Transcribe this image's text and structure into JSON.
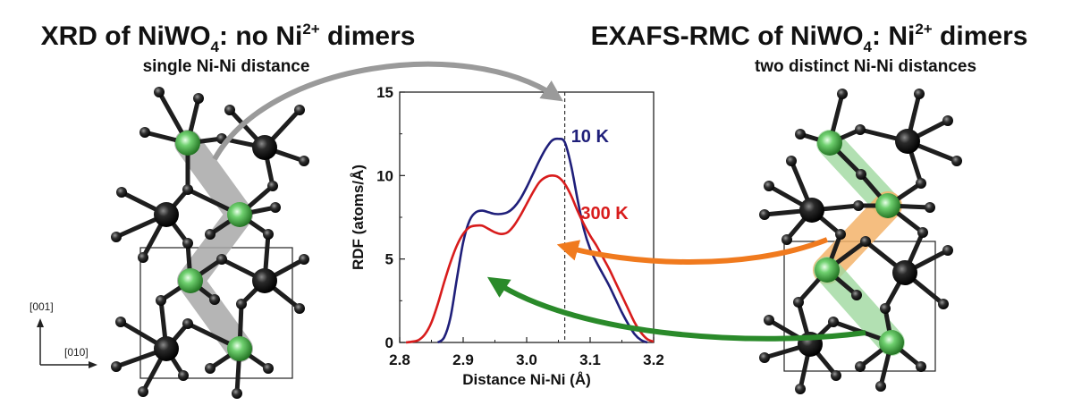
{
  "left_panel": {
    "title_prefix": "XRD of NiWO",
    "title_sub": "4",
    "title_mid": ": no Ni",
    "title_sup": "2+",
    "title_suffix": " dimers",
    "subtitle": "single Ni-Ni distance"
  },
  "right_panel": {
    "title_prefix": "EXAFS-RMC of NiWO",
    "title_sub": "4",
    "title_mid": ": Ni",
    "title_sup": "2+",
    "title_suffix": " dimers",
    "subtitle": "two distinct Ni-Ni distances"
  },
  "axes_indicator": {
    "vertical": "[001]",
    "horizontal": "[010]"
  },
  "colors": {
    "nickel": "#3aa63a",
    "tungsten": "#1a1a1a",
    "oxygen": "#2b2b2b",
    "blue_curve": "#1f1f7a",
    "red_curve": "#d81c1c",
    "orange_arrow": "#f07a1e",
    "green_arrow": "#2a8a2a",
    "gray_arrow": "#9a9a9a"
  },
  "chart_data": {
    "type": "line",
    "xlabel": "Distance Ni-Ni (Å)",
    "ylabel": "RDF (atoms/Å)",
    "xlim": [
      2.8,
      3.2
    ],
    "ylim": [
      0,
      15
    ],
    "xticks": [
      "2.8",
      "2.9",
      "3.0",
      "3.1",
      "3.2"
    ],
    "yticks": [
      "0",
      "5",
      "10",
      "15"
    ],
    "reference_line_x": 3.06,
    "series": [
      {
        "name": "10 K",
        "color": "#1f1f7a",
        "x": [
          2.86,
          2.87,
          2.88,
          2.89,
          2.9,
          2.91,
          2.92,
          2.93,
          2.94,
          2.95,
          2.96,
          2.97,
          2.98,
          2.99,
          3.0,
          3.01,
          3.02,
          3.03,
          3.04,
          3.05,
          3.06,
          3.07,
          3.08,
          3.09,
          3.1,
          3.11,
          3.12,
          3.13,
          3.14,
          3.15,
          3.16,
          3.17,
          3.18,
          3.19
        ],
        "y": [
          0,
          0.3,
          1.5,
          3.8,
          6.0,
          7.3,
          7.8,
          7.9,
          7.8,
          7.7,
          7.7,
          7.8,
          8.1,
          8.6,
          9.3,
          10.1,
          10.9,
          11.6,
          12.1,
          12.2,
          12.0,
          10.6,
          8.6,
          6.8,
          5.6,
          4.8,
          4.1,
          3.4,
          2.6,
          1.8,
          1.1,
          0.5,
          0.15,
          0
        ]
      },
      {
        "name": "300 K",
        "color": "#d81c1c",
        "x": [
          2.81,
          2.82,
          2.83,
          2.84,
          2.85,
          2.86,
          2.87,
          2.88,
          2.89,
          2.9,
          2.91,
          2.92,
          2.93,
          2.94,
          2.95,
          2.96,
          2.97,
          2.98,
          2.99,
          3.0,
          3.01,
          3.02,
          3.03,
          3.04,
          3.05,
          3.06,
          3.07,
          3.08,
          3.09,
          3.1,
          3.11,
          3.12,
          3.13,
          3.14,
          3.15,
          3.16,
          3.17,
          3.18,
          3.19,
          3.2
        ],
        "y": [
          0,
          0.05,
          0.15,
          0.5,
          1.2,
          2.3,
          3.6,
          4.8,
          5.8,
          6.5,
          6.9,
          7.0,
          7.0,
          6.8,
          6.6,
          6.5,
          6.6,
          7.0,
          7.6,
          8.3,
          9.0,
          9.6,
          9.9,
          10.0,
          9.9,
          9.5,
          8.8,
          7.9,
          7.1,
          6.4,
          5.8,
          5.1,
          4.4,
          3.6,
          2.8,
          2.0,
          1.2,
          0.6,
          0.2,
          0.05
        ]
      }
    ]
  }
}
